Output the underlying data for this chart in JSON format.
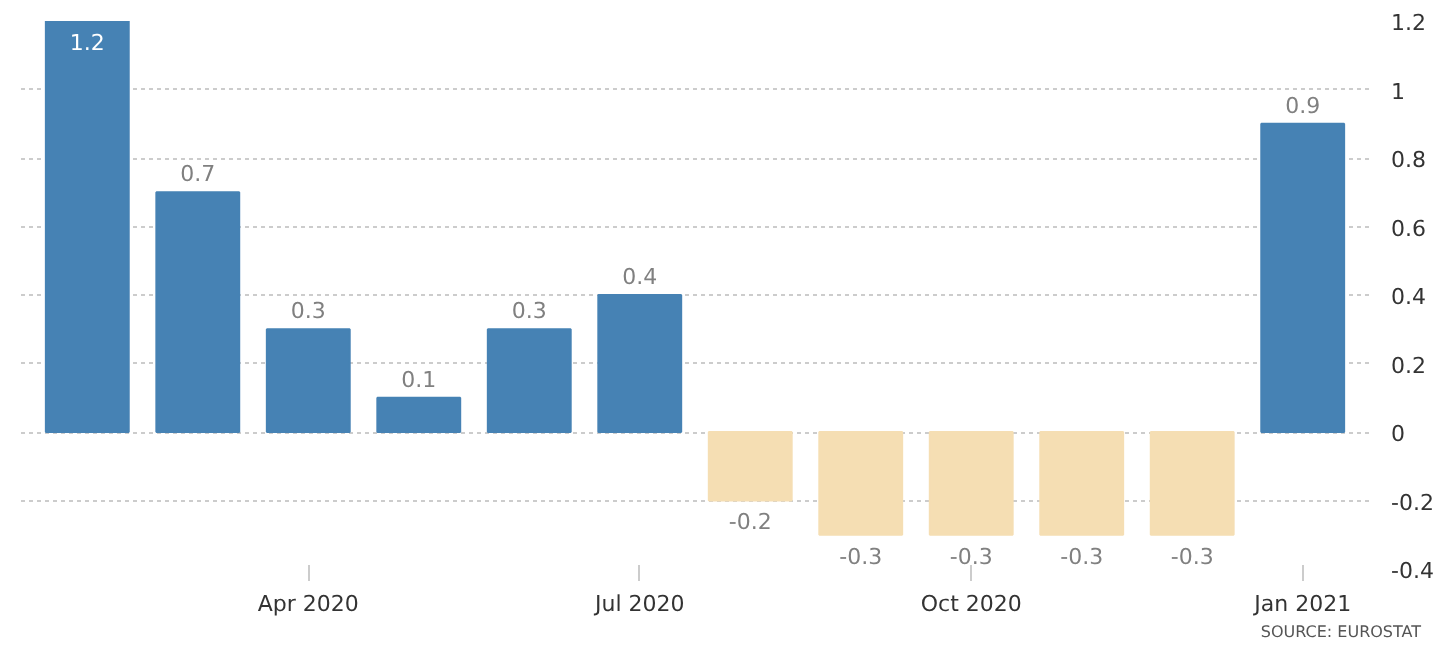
{
  "chart_data": {
    "type": "bar",
    "categories": [
      null,
      null,
      "Apr 2020",
      null,
      null,
      "Jul 2020",
      null,
      null,
      "Oct 2020",
      null,
      null,
      "Jan 2021"
    ],
    "values": [
      1.2,
      0.7,
      0.3,
      0.1,
      0.3,
      0.4,
      -0.2,
      -0.3,
      -0.3,
      -0.3,
      -0.3,
      0.9
    ],
    "colors": [
      "#4682b4",
      "#4682b4",
      "#4682b4",
      "#4682b4",
      "#4682b4",
      "#4682b4",
      "#f5deb3",
      "#f5deb3",
      "#f5deb3",
      "#f5deb3",
      "#f5deb3",
      "#4682b4"
    ],
    "ylim": [
      -0.4,
      1.2
    ],
    "yticks": [
      -0.4,
      -0.2,
      0,
      0.2,
      0.4,
      0.6,
      0.8,
      1,
      1.2
    ],
    "grid": "y",
    "data_labels": true,
    "annotations": [
      "SOURCE: EUROSTAT"
    ]
  }
}
